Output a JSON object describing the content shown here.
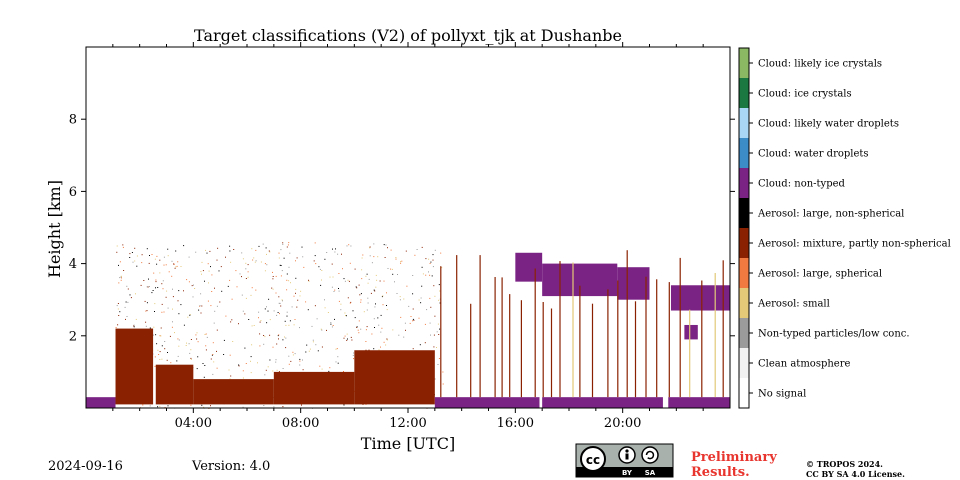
{
  "chart_data": {
    "type": "heatmap",
    "title": "Target classifications (V2) of pollyxt_tjk at Dushanbe",
    "xlabel": "Time [UTC]",
    "ylabel": "Height [km]",
    "xlim": [
      0,
      24
    ],
    "ylim": [
      0,
      10
    ],
    "x_ticks": [
      {
        "value": 4,
        "label": "04:00"
      },
      {
        "value": 8,
        "label": "08:00"
      },
      {
        "value": 12,
        "label": "12:00"
      },
      {
        "value": 16,
        "label": "16:00"
      },
      {
        "value": 20,
        "label": "20:00"
      }
    ],
    "y_ticks": [
      {
        "value": 2,
        "label": "2"
      },
      {
        "value": 4,
        "label": "4"
      },
      {
        "value": 6,
        "label": "6"
      },
      {
        "value": 8,
        "label": "8"
      }
    ],
    "classes": [
      {
        "label": "No signal",
        "color": "#ffffff"
      },
      {
        "label": "Clean atmosphere",
        "color": "#f2f2f2"
      },
      {
        "label": "Non-typed particles/low conc.",
        "color": "#9b9b9b"
      },
      {
        "label": "Aerosol: small",
        "color": "#e3c978"
      },
      {
        "label": "Aerosol: large, spherical",
        "color": "#f07a3f"
      },
      {
        "label": "Aerosol: mixture, partly non-spherical",
        "color": "#8a2202"
      },
      {
        "label": "Aerosol: large, non-spherical",
        "color": "#000000"
      },
      {
        "label": "Cloud: non-typed",
        "color": "#7b2384"
      },
      {
        "label": "Cloud: water droplets",
        "color": "#3c8cc8"
      },
      {
        "label": "Cloud: likely water droplets",
        "color": "#a9d6f5"
      },
      {
        "label": "Cloud: ice crystals",
        "color": "#1a7840"
      },
      {
        "label": "Cloud: likely ice crystals",
        "color": "#8bb863"
      }
    ],
    "regions": [
      {
        "class": "Cloud: non-typed",
        "from": 0.0,
        "to": 1.1,
        "bottom": 0.0,
        "top": 0.3
      },
      {
        "class": "Aerosol: mixture, partly non-spherical",
        "from": 1.1,
        "to": 2.5,
        "bottom": 0.1,
        "top": 2.2
      },
      {
        "class": "Aerosol: mixture, partly non-spherical",
        "from": 2.6,
        "to": 4.0,
        "bottom": 0.1,
        "top": 1.2
      },
      {
        "class": "Aerosol: mixture, partly non-spherical",
        "from": 4.0,
        "to": 7.0,
        "bottom": 0.1,
        "top": 0.8
      },
      {
        "class": "Aerosol: mixture, partly non-spherical",
        "from": 7.0,
        "to": 10.0,
        "bottom": 0.1,
        "top": 1.0
      },
      {
        "class": "Aerosol: mixture, partly non-spherical",
        "from": 10.0,
        "to": 13.0,
        "bottom": 0.1,
        "top": 1.6
      },
      {
        "class": "Cloud: non-typed",
        "from": 13.0,
        "to": 16.9,
        "bottom": 0.0,
        "top": 0.3
      },
      {
        "class": "Cloud: non-typed",
        "from": 17.0,
        "to": 21.5,
        "bottom": 0.0,
        "top": 0.3
      },
      {
        "class": "Cloud: non-typed",
        "from": 21.7,
        "to": 24.0,
        "bottom": 0.0,
        "top": 0.3
      },
      {
        "class": "Cloud: non-typed",
        "from": 16.0,
        "to": 17.0,
        "bottom": 3.5,
        "top": 4.3
      },
      {
        "class": "Cloud: non-typed",
        "from": 17.0,
        "to": 19.8,
        "bottom": 3.1,
        "top": 4.0
      },
      {
        "class": "Cloud: non-typed",
        "from": 19.8,
        "to": 21.0,
        "bottom": 3.0,
        "top": 3.9
      },
      {
        "class": "Cloud: non-typed",
        "from": 21.8,
        "to": 24.0,
        "bottom": 2.7,
        "top": 3.4
      },
      {
        "class": "Cloud: non-typed",
        "from": 22.3,
        "to": 22.8,
        "bottom": 1.9,
        "top": 2.3
      }
    ],
    "date": "2024-09-16",
    "version": "Version: 4.0"
  },
  "footer": {
    "license_badge": "CC BY SA",
    "preliminary_line1": "Preliminary",
    "preliminary_line2": "Results.",
    "copyright_line1": "© TROPOS 2024.",
    "copyright_line2": "CC BY SA 4.0 License."
  },
  "cc_badge": {
    "cc": "cc",
    "by": "BY",
    "sa": "SA"
  }
}
